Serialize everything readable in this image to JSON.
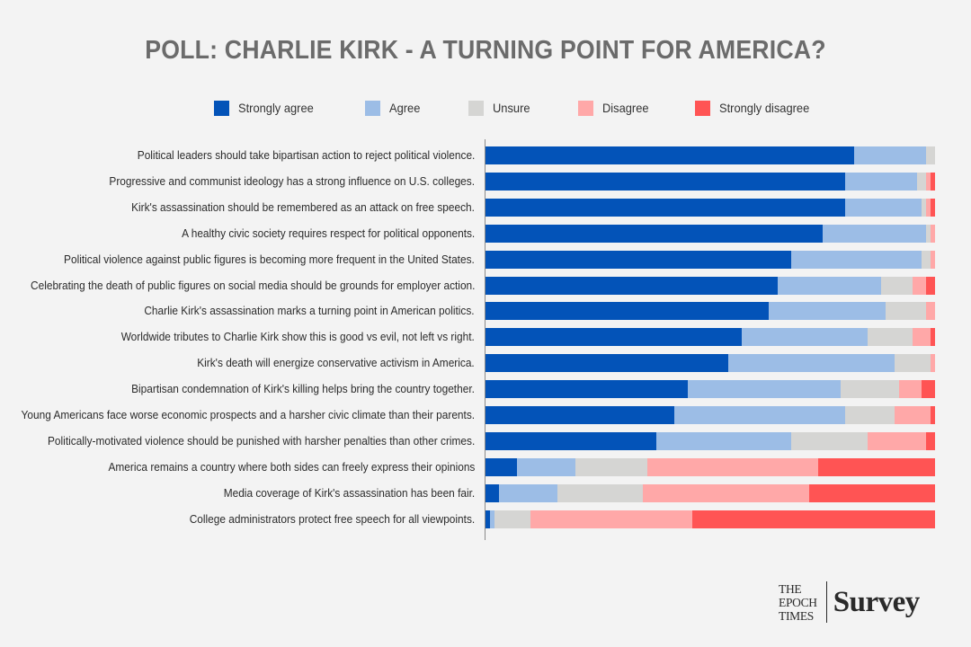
{
  "chart_data": {
    "type": "bar",
    "orientation": "horizontal",
    "stacked": true,
    "title": "POLL: CHARLIE KIRK - A TURNING POINT FOR AMERICA?",
    "xlabel": "",
    "ylabel": "",
    "xlim": [
      0,
      100
    ],
    "unit": "percent",
    "grid": false,
    "legend_position": "top-center",
    "categories": [
      "Political leaders should take bipartisan action to reject political violence.",
      "Progressive and communist ideology has a strong influence on U.S. colleges.",
      "Kirk's assassination should be remembered as an attack on free speech.",
      "A healthy civic society requires respect for political opponents.",
      "Political violence against public figures is becoming more frequent in the United States.",
      "Celebrating the death of public figures on social media should be grounds for employer action.",
      "Charlie Kirk's assassination marks a turning point in American politics.",
      "Worldwide tributes to Charlie Kirk show this is good vs evil, not left vs right.",
      "Kirk's death will energize conservative activism in America.",
      "Bipartisan condemnation of Kirk's killing helps bring the country together.",
      "Young Americans face worse economic prospects and a harsher civic climate than their parents.",
      "Politically-motivated violence should be punished with harsher penalties than other crimes.",
      "America remains a country where both sides can freely express their opinions",
      "Media coverage of Kirk's assassination has been fair.",
      "College administrators protect free speech for all viewpoints."
    ],
    "series": [
      {
        "name": "Strongly agree",
        "color": "#0353b8",
        "values": [
          82,
          80,
          80,
          75,
          68,
          65,
          63,
          57,
          54,
          45,
          42,
          38,
          7,
          3,
          1
        ]
      },
      {
        "name": "Agree",
        "color": "#9cbde6",
        "values": [
          16,
          16,
          17,
          23,
          29,
          23,
          26,
          28,
          37,
          34,
          38,
          30,
          13,
          13,
          1
        ]
      },
      {
        "name": "Unsure",
        "color": "#d5d5d3",
        "values": [
          2,
          2,
          1,
          1,
          2,
          7,
          9,
          10,
          8,
          13,
          11,
          17,
          16,
          19,
          8
        ]
      },
      {
        "name": "Disagree",
        "color": "#ffa8a8",
        "values": [
          0,
          1,
          1,
          1,
          1,
          3,
          2,
          4,
          1,
          5,
          8,
          13,
          38,
          37,
          36
        ]
      },
      {
        "name": "Strongly disagree",
        "color": "#ff5454",
        "values": [
          0,
          1,
          1,
          0,
          0,
          2,
          0,
          1,
          0,
          3,
          1,
          2,
          26,
          28,
          54
        ]
      }
    ]
  },
  "branding": {
    "publisher_lines": [
      "THE",
      "EPOCH",
      "TIMES"
    ],
    "product": "Survey"
  }
}
